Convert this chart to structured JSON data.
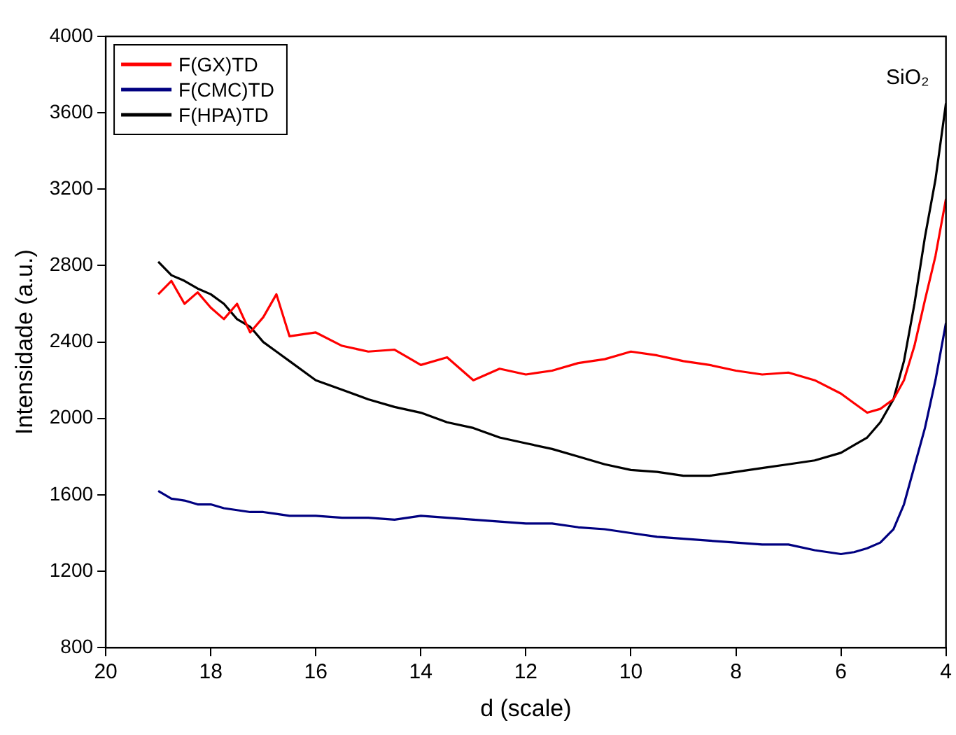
{
  "chart_data": {
    "type": "line",
    "xlabel": "d (scale)",
    "ylabel": "Intensidade (a.u.)",
    "x": [
      19,
      18.75,
      18.5,
      18.25,
      18,
      17.75,
      17.5,
      17.25,
      17,
      16.75,
      16.5,
      16,
      15.5,
      15,
      14.5,
      14,
      13.5,
      13,
      12.5,
      12,
      11.5,
      11,
      10.5,
      10,
      9.5,
      9,
      8.5,
      8,
      7.5,
      7,
      6.5,
      6,
      5.75,
      5.5,
      5.25,
      5,
      4.8,
      4.6,
      4.4,
      4.2,
      4.0
    ],
    "series": [
      {
        "name": "F(GX)TD",
        "color": "#ff0000",
        "values": [
          2650,
          2720,
          2600,
          2660,
          2580,
          2520,
          2600,
          2450,
          2530,
          2650,
          2430,
          2450,
          2380,
          2350,
          2360,
          2280,
          2320,
          2200,
          2260,
          2230,
          2250,
          2290,
          2310,
          2350,
          2330,
          2300,
          2280,
          2250,
          2230,
          2240,
          2200,
          2130,
          2080,
          2030,
          2050,
          2100,
          2200,
          2380,
          2620,
          2850,
          3150
        ]
      },
      {
        "name": "F(CMC)TD",
        "color": "#000080",
        "values": [
          1620,
          1580,
          1570,
          1550,
          1550,
          1530,
          1520,
          1510,
          1510,
          1500,
          1490,
          1490,
          1480,
          1480,
          1470,
          1490,
          1480,
          1470,
          1460,
          1450,
          1450,
          1430,
          1420,
          1400,
          1380,
          1370,
          1360,
          1350,
          1340,
          1340,
          1310,
          1290,
          1300,
          1320,
          1350,
          1420,
          1550,
          1750,
          1950,
          2200,
          2500
        ]
      },
      {
        "name": "F(HPA)TD",
        "color": "#000000",
        "values": [
          2820,
          2750,
          2720,
          2680,
          2650,
          2600,
          2520,
          2480,
          2400,
          2350,
          2300,
          2200,
          2150,
          2100,
          2060,
          2030,
          1980,
          1950,
          1900,
          1870,
          1840,
          1800,
          1760,
          1730,
          1720,
          1700,
          1700,
          1720,
          1740,
          1760,
          1780,
          1820,
          1860,
          1900,
          1980,
          2100,
          2300,
          2600,
          2950,
          3250,
          3650
        ]
      }
    ],
    "xlim": [
      20,
      4
    ],
    "xticks": [
      20,
      18,
      16,
      14,
      12,
      10,
      8,
      6,
      4
    ],
    "ylim": [
      800,
      4000
    ],
    "yticks": [
      800,
      1200,
      1600,
      2000,
      2400,
      2800,
      3200,
      3600,
      4000
    ],
    "grid": false,
    "legend": "top left",
    "marker": "none",
    "line_style": "solid",
    "annotations": [
      "SiO₂"
    ]
  }
}
